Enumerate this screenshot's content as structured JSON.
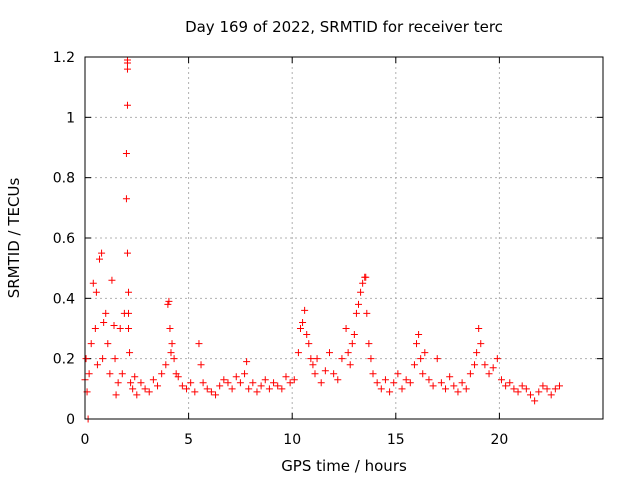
{
  "chart_data": {
    "type": "scatter",
    "title": "Day 169 of 2022, SRMTID for receiver terc",
    "xlabel": "GPS time / hours",
    "ylabel": "SRMTID / TECUs",
    "xlim": [
      0,
      25
    ],
    "ylim": [
      0,
      1.2
    ],
    "xticks": [
      0,
      5,
      10,
      15,
      20
    ],
    "yticks": [
      0,
      0.2,
      0.4,
      0.6,
      0.8,
      1,
      1.2
    ],
    "xtick_labels": [
      "0",
      "5",
      "10",
      "15",
      "20"
    ],
    "ytick_labels": [
      "0",
      "0.2",
      "0.4",
      "0.6",
      "0.8",
      "1",
      "1.2"
    ],
    "grid": true,
    "marker": "+",
    "series": [
      {
        "name": "SRMTID",
        "color": "#ff0000",
        "x": [
          0.0,
          0.05,
          0.1,
          0.15,
          0.2,
          0.3,
          0.4,
          0.5,
          0.55,
          0.6,
          0.7,
          0.8,
          0.85,
          0.9,
          1.0,
          1.1,
          1.2,
          1.3,
          1.4,
          1.45,
          1.5,
          1.6,
          1.7,
          1.8,
          1.9,
          2.0,
          2.0,
          2.05,
          2.05,
          2.05,
          2.05,
          2.05,
          2.1,
          2.1,
          2.1,
          2.15,
          2.2,
          2.3,
          2.4,
          2.5,
          2.7,
          2.9,
          3.1,
          3.3,
          3.5,
          3.7,
          3.9,
          4.0,
          4.05,
          4.1,
          4.15,
          4.2,
          4.3,
          4.4,
          4.5,
          4.7,
          4.9,
          5.1,
          5.3,
          5.5,
          5.6,
          5.7,
          5.9,
          6.1,
          6.3,
          6.5,
          6.7,
          6.9,
          7.1,
          7.3,
          7.5,
          7.7,
          7.8,
          7.9,
          8.1,
          8.3,
          8.5,
          8.7,
          8.9,
          9.1,
          9.3,
          9.5,
          9.7,
          9.9,
          10.1,
          10.3,
          10.4,
          10.5,
          10.6,
          10.7,
          10.8,
          10.9,
          11.0,
          11.1,
          11.2,
          11.4,
          11.6,
          11.8,
          12.0,
          12.2,
          12.4,
          12.6,
          12.7,
          12.8,
          12.9,
          13.0,
          13.1,
          13.2,
          13.3,
          13.4,
          13.5,
          13.55,
          13.6,
          13.7,
          13.8,
          13.9,
          14.1,
          14.3,
          14.5,
          14.7,
          14.9,
          15.1,
          15.3,
          15.5,
          15.7,
          15.9,
          16.0,
          16.1,
          16.2,
          16.3,
          16.4,
          16.6,
          16.8,
          17.0,
          17.2,
          17.4,
          17.6,
          17.8,
          18.0,
          18.2,
          18.4,
          18.6,
          18.8,
          18.9,
          19.0,
          19.1,
          19.3,
          19.5,
          19.7,
          19.9,
          20.1,
          20.3,
          20.5,
          20.7,
          20.9,
          21.1,
          21.3,
          21.5,
          21.7,
          21.9,
          22.1,
          22.3,
          22.5,
          22.7,
          22.9
        ],
        "y": [
          0.13,
          0.2,
          0.09,
          0.0,
          0.15,
          0.25,
          0.45,
          0.3,
          0.42,
          0.18,
          0.53,
          0.55,
          0.2,
          0.32,
          0.35,
          0.25,
          0.15,
          0.46,
          0.31,
          0.2,
          0.08,
          0.12,
          0.3,
          0.15,
          0.35,
          0.73,
          0.88,
          1.04,
          1.16,
          1.18,
          1.19,
          0.55,
          0.42,
          0.3,
          0.35,
          0.22,
          0.12,
          0.1,
          0.14,
          0.08,
          0.12,
          0.1,
          0.09,
          0.13,
          0.11,
          0.15,
          0.18,
          0.38,
          0.39,
          0.3,
          0.22,
          0.25,
          0.2,
          0.15,
          0.14,
          0.11,
          0.1,
          0.12,
          0.09,
          0.25,
          0.18,
          0.12,
          0.1,
          0.09,
          0.08,
          0.11,
          0.13,
          0.12,
          0.1,
          0.14,
          0.12,
          0.15,
          0.19,
          0.1,
          0.12,
          0.09,
          0.11,
          0.13,
          0.1,
          0.12,
          0.11,
          0.1,
          0.14,
          0.12,
          0.13,
          0.22,
          0.3,
          0.32,
          0.36,
          0.28,
          0.25,
          0.2,
          0.18,
          0.15,
          0.2,
          0.12,
          0.16,
          0.22,
          0.15,
          0.13,
          0.2,
          0.3,
          0.22,
          0.18,
          0.25,
          0.28,
          0.35,
          0.38,
          0.42,
          0.45,
          0.47,
          0.47,
          0.35,
          0.25,
          0.2,
          0.15,
          0.12,
          0.1,
          0.13,
          0.09,
          0.12,
          0.15,
          0.1,
          0.13,
          0.12,
          0.18,
          0.25,
          0.28,
          0.2,
          0.15,
          0.22,
          0.13,
          0.11,
          0.2,
          0.12,
          0.1,
          0.14,
          0.11,
          0.09,
          0.12,
          0.1,
          0.15,
          0.18,
          0.22,
          0.3,
          0.25,
          0.18,
          0.15,
          0.17,
          0.2,
          0.13,
          0.11,
          0.12,
          0.1,
          0.09,
          0.11,
          0.1,
          0.08,
          0.06,
          0.09,
          0.11,
          0.1,
          0.08,
          0.1,
          0.11
        ]
      }
    ]
  }
}
